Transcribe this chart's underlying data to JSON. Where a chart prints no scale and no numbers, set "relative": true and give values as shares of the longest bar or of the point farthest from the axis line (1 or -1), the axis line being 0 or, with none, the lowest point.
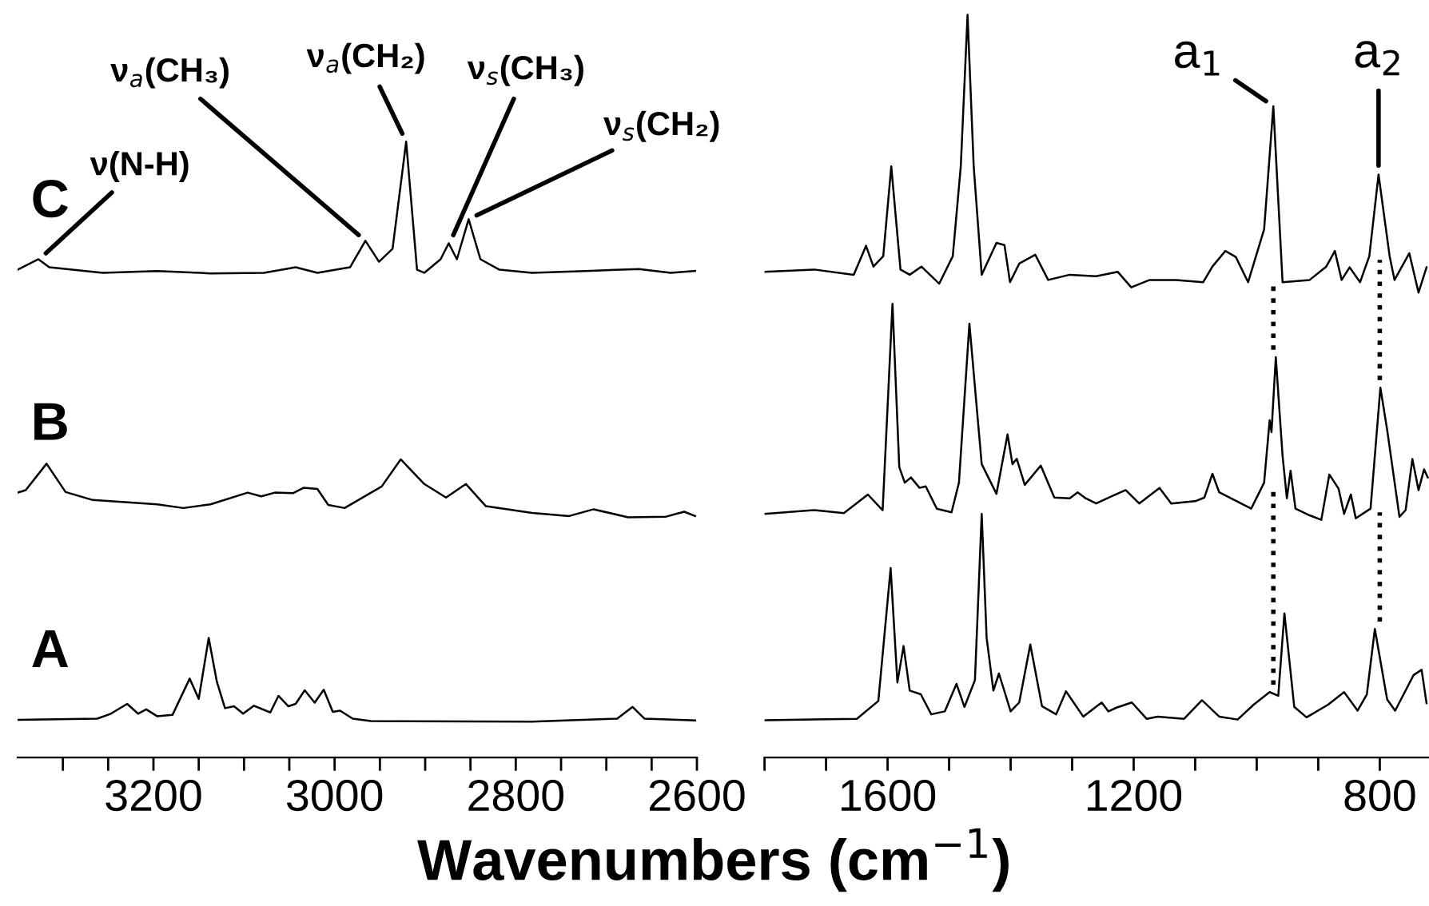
{
  "chart_data": [
    {
      "type": "line",
      "relative": true,
      "xlabel": "Wavenumbers (cm$^{−1}$)",
      "xlim": [
        3350,
        2600
      ],
      "xticks": [
        {
          "value": 3300,
          "label": null
        },
        {
          "value": 3250,
          "label": null
        },
        3200,
        {
          "value": 3150,
          "label": null
        },
        {
          "value": 3100,
          "label": null
        },
        {
          "value": 3050,
          "label": null
        },
        3000,
        {
          "value": 2950,
          "label": null
        },
        {
          "value": 2900,
          "label": null
        },
        {
          "value": 2850,
          "label": null
        },
        2800,
        {
          "value": 2750,
          "label": null
        },
        {
          "value": 2700,
          "label": null
        },
        {
          "value": 2650,
          "label": null
        },
        2600
      ],
      "tick_labels": "x",
      "series": [
        {
          "name": "C",
          "color": "#000000",
          "x": [
            3350,
            3327,
            3315,
            3256,
            3196,
            3137,
            3078,
            3043,
            3019,
            2983,
            2966,
            2951,
            2936,
            2921,
            2909,
            2901,
            2883,
            2874,
            2865,
            2852,
            2839,
            2818,
            2782,
            2723,
            2664,
            2629,
            2602
          ],
          "values": [
            0.792,
            0.809,
            0.796,
            0.787,
            0.79,
            0.786,
            0.787,
            0.796,
            0.787,
            0.796,
            0.839,
            0.805,
            0.826,
            1.0,
            0.792,
            0.787,
            0.809,
            0.835,
            0.809,
            0.874,
            0.809,
            0.792,
            0.787,
            0.79,
            0.793,
            0.787,
            0.79
          ]
        },
        {
          "name": "B",
          "color": "#000000",
          "x": [
            3350,
            3341,
            3318,
            3297,
            3267,
            3196,
            3167,
            3137,
            3096,
            3081,
            3066,
            3046,
            3034,
            3019,
            3007,
            2989,
            2948,
            2927,
            2901,
            2877,
            2855,
            2833,
            2782,
            2741,
            2714,
            2676,
            2634,
            2614,
            2602
          ],
          "values": [
            0.43,
            0.434,
            0.477,
            0.431,
            0.418,
            0.411,
            0.405,
            0.411,
            0.43,
            0.424,
            0.43,
            0.429,
            0.438,
            0.436,
            0.41,
            0.405,
            0.44,
            0.484,
            0.444,
            0.422,
            0.444,
            0.408,
            0.397,
            0.392,
            0.403,
            0.39,
            0.391,
            0.399,
            0.392
          ]
        },
        {
          "name": "A",
          "color": "#000000",
          "x": [
            3350,
            3262,
            3247,
            3229,
            3217,
            3208,
            3196,
            3179,
            3160,
            3150,
            3139,
            3130,
            3121,
            3111,
            3101,
            3089,
            3071,
            3062,
            3051,
            3043,
            3033,
            3022,
            3012,
            3002,
            2994,
            2980,
            2960,
            2782,
            2688,
            2671,
            2658,
            2602
          ],
          "values": [
            0.061,
            0.063,
            0.071,
            0.087,
            0.071,
            0.078,
            0.067,
            0.069,
            0.128,
            0.095,
            0.194,
            0.123,
            0.08,
            0.083,
            0.071,
            0.084,
            0.073,
            0.1,
            0.083,
            0.087,
            0.109,
            0.089,
            0.11,
            0.074,
            0.076,
            0.063,
            0.059,
            0.058,
            0.063,
            0.082,
            0.063,
            0.06
          ]
        }
      ],
      "annotations": [
        {
          "text": "ν(N-H)",
          "x": 3326,
          "y": 0.809
        },
        {
          "text": "ν$_{a}$(CH₃)",
          "x": 2966,
          "y": 0.839
        },
        {
          "text": "ν$_{a}$(CH₂)",
          "x": 2921,
          "y": 1.0
        },
        {
          "text": "ν$_{s}$(CH₃)",
          "x": 2873,
          "y": 0.835
        },
        {
          "text": "ν$_{s}$(CH₂)",
          "x": 2852,
          "y": 0.874
        }
      ]
    },
    {
      "type": "line",
      "relative": true,
      "xlim": [
        1800,
        720
      ],
      "xticks": [
        {
          "value": 1800,
          "label": null
        },
        {
          "value": 1700,
          "label": null
        },
        1600,
        {
          "value": 1500,
          "label": null
        },
        {
          "value": 1400,
          "label": null
        },
        {
          "value": 1300,
          "label": null
        },
        1200,
        {
          "value": 1100,
          "label": null
        },
        {
          "value": 1000,
          "label": null
        },
        {
          "value": 900,
          "label": null
        },
        800
      ],
      "tick_labels": "x",
      "series": [
        {
          "color": "#000000",
          "x": [
            1800,
            1719,
            1655,
            1635,
            1623,
            1607,
            1594,
            1579,
            1564,
            1545,
            1516,
            1494,
            1481,
            1470,
            1460,
            1447,
            1423,
            1410,
            1401,
            1386,
            1360,
            1339,
            1304,
            1261,
            1226,
            1204,
            1174,
            1131,
            1087,
            1072,
            1051,
            1034,
            1014,
            988,
            973,
            958,
            914,
            887,
            873,
            862,
            849,
            832,
            817,
            802,
            784,
            776,
            752,
            737,
            724
          ],
          "values": [
            0.654,
            0.657,
            0.65,
            0.689,
            0.661,
            0.675,
            0.796,
            0.657,
            0.65,
            0.661,
            0.638,
            0.675,
            0.796,
            1.0,
            0.796,
            0.65,
            0.693,
            0.69,
            0.64,
            0.665,
            0.677,
            0.643,
            0.65,
            0.648,
            0.654,
            0.633,
            0.643,
            0.643,
            0.64,
            0.661,
            0.682,
            0.674,
            0.64,
            0.711,
            0.877,
            0.64,
            0.643,
            0.661,
            0.682,
            0.643,
            0.66,
            0.64,
            0.675,
            0.785,
            0.675,
            0.643,
            0.679,
            0.626,
            0.66
          ]
        },
        {
          "color": "#000000",
          "x": [
            1800,
            1719,
            1671,
            1632,
            1608,
            1592,
            1581,
            1572,
            1562,
            1548,
            1538,
            1520,
            1496,
            1484,
            1467,
            1447,
            1423,
            1405,
            1397,
            1390,
            1377,
            1351,
            1329,
            1304,
            1291,
            1278,
            1261,
            1235,
            1213,
            1191,
            1158,
            1139,
            1100,
            1085,
            1072,
            1061,
            1009,
            988,
            979,
            976,
            969,
            958,
            951,
            945,
            937,
            914,
            895,
            882,
            867,
            858,
            847,
            839,
            815,
            799,
            788,
            768,
            758,
            747,
            737,
            728,
            722
          ],
          "values": [
            0.328,
            0.333,
            0.329,
            0.354,
            0.333,
            0.611,
            0.391,
            0.37,
            0.377,
            0.363,
            0.365,
            0.335,
            0.33,
            0.37,
            0.584,
            0.395,
            0.355,
            0.435,
            0.395,
            0.402,
            0.367,
            0.393,
            0.35,
            0.349,
            0.357,
            0.349,
            0.342,
            0.352,
            0.36,
            0.342,
            0.363,
            0.342,
            0.345,
            0.35,
            0.382,
            0.357,
            0.335,
            0.37,
            0.454,
            0.438,
            0.539,
            0.406,
            0.349,
            0.386,
            0.335,
            0.326,
            0.32,
            0.381,
            0.362,
            0.328,
            0.354,
            0.322,
            0.335,
            0.498,
            0.441,
            0.324,
            0.333,
            0.402,
            0.36,
            0.388,
            0.377
          ]
        },
        {
          "color": "#000000",
          "x": [
            1800,
            1650,
            1615,
            1595,
            1584,
            1574,
            1564,
            1546,
            1529,
            1507,
            1488,
            1475,
            1458,
            1447,
            1439,
            1428,
            1419,
            1400,
            1386,
            1368,
            1349,
            1326,
            1310,
            1282,
            1252,
            1241,
            1228,
            1203,
            1179,
            1161,
            1118,
            1089,
            1061,
            1031,
            1005,
            979,
            965,
            955,
            939,
            919,
            884,
            858,
            836,
            821,
            808,
            788,
            775,
            745,
            732,
            724
          ],
          "values": [
            0.05,
            0.052,
            0.076,
            0.255,
            0.101,
            0.15,
            0.09,
            0.085,
            0.058,
            0.062,
            0.099,
            0.068,
            0.104,
            0.328,
            0.161,
            0.09,
            0.113,
            0.062,
            0.074,
            0.152,
            0.069,
            0.058,
            0.089,
            0.055,
            0.074,
            0.062,
            0.067,
            0.074,
            0.052,
            0.055,
            0.052,
            0.077,
            0.055,
            0.051,
            0.071,
            0.088,
            0.083,
            0.194,
            0.068,
            0.054,
            0.071,
            0.088,
            0.063,
            0.085,
            0.173,
            0.078,
            0.063,
            0.111,
            0.118,
            0.073
          ]
        }
      ],
      "ref_lines": [
        {
          "axis": "x",
          "value": 973,
          "line_style": "dotted"
        },
        {
          "axis": "x",
          "value": 800,
          "line_style": "dotted"
        }
      ],
      "annotations": [
        {
          "text": "a$_{1}$",
          "x": 973,
          "y": 0.877
        },
        {
          "text": "a$_{2}$",
          "x": 802,
          "y": 0.785
        }
      ]
    }
  ]
}
